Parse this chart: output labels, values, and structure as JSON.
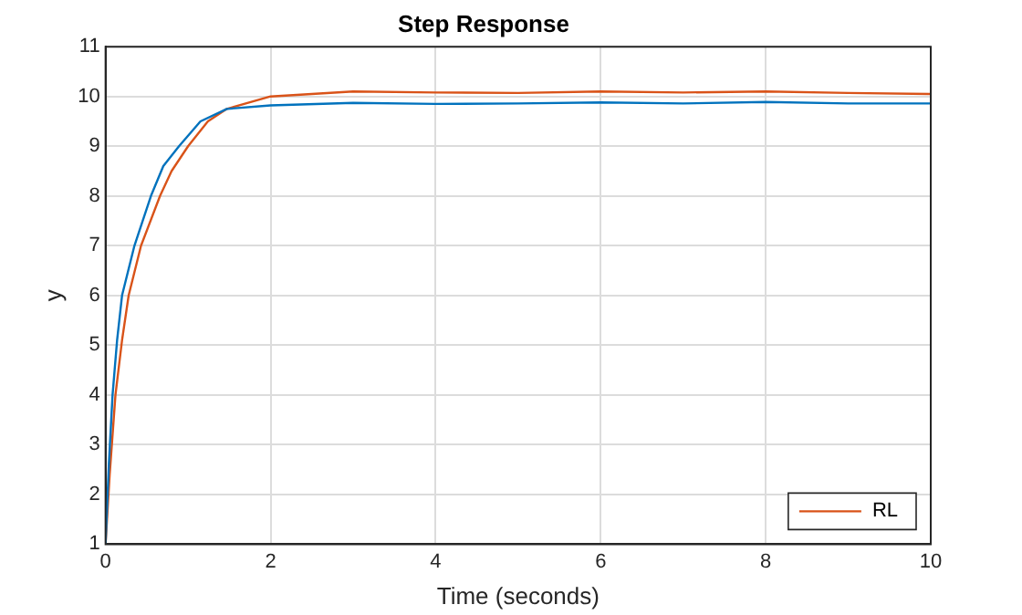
{
  "chart_data": {
    "type": "line",
    "title": "Step Response",
    "xlabel": "Time (seconds)",
    "ylabel": "y",
    "xlim": [
      0,
      10
    ],
    "xticks": [
      0,
      2,
      4,
      6,
      8,
      10
    ],
    "ylim": [
      1,
      11
    ],
    "yticks": [
      1,
      2,
      3,
      4,
      5,
      6,
      7,
      8,
      9,
      10,
      11
    ],
    "grid": true,
    "legend": "bottom right",
    "marker": "none",
    "line_style": "solid",
    "series": [
      {
        "color": "#0072bd",
        "x": [
          0,
          0.04,
          0.085,
          0.14,
          0.2,
          0.35,
          0.55,
          0.7,
          0.89,
          1.15,
          1.47,
          2,
          3,
          4,
          5,
          6,
          7,
          8,
          9,
          10
        ],
        "values": [
          1,
          2.6,
          4,
          5.1,
          6,
          7,
          8,
          8.6,
          9,
          9.5,
          9.75,
          9.82,
          9.87,
          9.85,
          9.86,
          9.88,
          9.86,
          9.89,
          9.86,
          9.86
        ]
      },
      {
        "name": "RL",
        "color": "#d95319",
        "x": [
          0,
          0.05,
          0.12,
          0.2,
          0.28,
          0.43,
          0.66,
          0.8,
          1,
          1.24,
          1.47,
          2,
          3,
          4,
          5,
          6,
          7,
          8,
          9,
          10
        ],
        "values": [
          1,
          2.4,
          4,
          5.1,
          6,
          7,
          8,
          8.5,
          9,
          9.5,
          9.75,
          10,
          10.1,
          10.08,
          10.07,
          10.1,
          10.08,
          10.1,
          10.07,
          10.05
        ]
      }
    ]
  }
}
